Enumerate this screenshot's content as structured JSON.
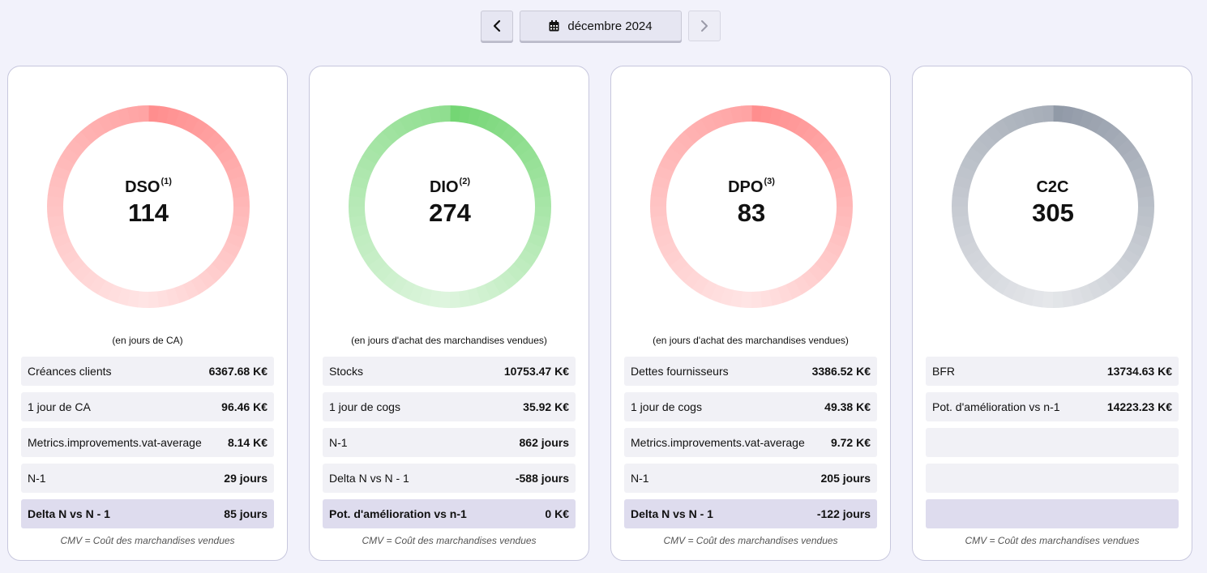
{
  "nav": {
    "period_label": "décembre 2024"
  },
  "colors": {
    "red": "#ff7a7a",
    "green": "#5ccf5c",
    "gray": "#7e8898"
  },
  "cards": [
    {
      "name": "DSO",
      "sup": "(1)",
      "value": "114",
      "unit_note": "(en jours de CA)",
      "rows": [
        {
          "label": "Créances clients",
          "value": "6367.68 K€"
        },
        {
          "label": "1 jour de CA",
          "value": "96.46 K€"
        },
        {
          "label": "Metrics.improvements.vat-average",
          "value": "8.14 K€"
        },
        {
          "label": "N-1",
          "value": "29 jours"
        },
        {
          "label": "Delta N vs N - 1",
          "value": "85 jours"
        }
      ],
      "footnote": "CMV = Coût des marchandises vendues"
    },
    {
      "name": "DIO",
      "sup": "(2)",
      "value": "274",
      "unit_note": "(en jours d'achat des marchandises vendues)",
      "rows": [
        {
          "label": "Stocks",
          "value": "10753.47 K€"
        },
        {
          "label": "1 jour de cogs",
          "value": "35.92 K€"
        },
        {
          "label": "N-1",
          "value": "862 jours"
        },
        {
          "label": "Delta N vs N - 1",
          "value": "-588 jours"
        },
        {
          "label": "Pot. d'amélioration vs n-1",
          "value": "0 K€"
        }
      ],
      "footnote": "CMV = Coût des marchandises vendues"
    },
    {
      "name": "DPO",
      "sup": "(3)",
      "value": "83",
      "unit_note": "(en jours d'achat des marchandises vendues)",
      "rows": [
        {
          "label": "Dettes fournisseurs",
          "value": "3386.52 K€"
        },
        {
          "label": "1 jour de cogs",
          "value": "49.38 K€"
        },
        {
          "label": "Metrics.improvements.vat-average",
          "value": "9.72 K€"
        },
        {
          "label": "N-1",
          "value": "205 jours"
        },
        {
          "label": "Delta N vs N - 1",
          "value": "-122 jours"
        }
      ],
      "footnote": "CMV = Coût des marchandises vendues"
    },
    {
      "name": "C2C",
      "sup": "",
      "value": "305",
      "unit_note": "",
      "rows": [
        {
          "label": "BFR",
          "value": "13734.63 K€"
        },
        {
          "label": "Pot. d'amélioration vs n-1",
          "value": "14223.23 K€"
        },
        {
          "label": "",
          "value": ""
        },
        {
          "label": "",
          "value": ""
        },
        {
          "label": "",
          "value": ""
        }
      ],
      "footnote": "CMV = Coût des marchandises vendues"
    }
  ]
}
